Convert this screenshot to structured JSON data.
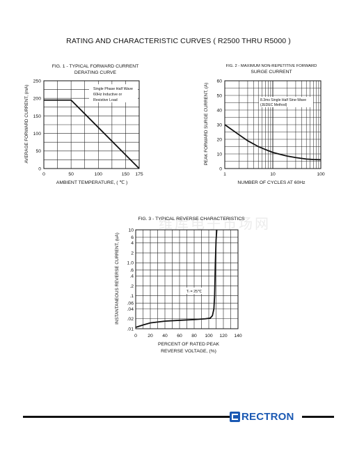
{
  "page_title": "RATING AND CHARACTERISTIC CURVES ( R2500 THRU R5000 )",
  "watermark": "维库电子市场网",
  "brand": {
    "name": "RECTRON",
    "color": "#1b59b3"
  },
  "chart_data": [
    {
      "id": "fig1",
      "type": "line",
      "title": "FIG. 1 - TYPICAL FORWARD CURRENT",
      "subtitle": "DERATING CURVE",
      "xlabel": "AMBIENT TEMPERATURE, ( ℃ )",
      "ylabel": "AVERAGE FORWARD CURRENT, (mA)",
      "xlim": [
        0,
        175
      ],
      "ylim": [
        0,
        250
      ],
      "xticks": [
        0,
        50,
        100,
        150,
        175
      ],
      "yticks": [
        0,
        50,
        100,
        150,
        200,
        250
      ],
      "grid": true,
      "annotation": [
        "Single Phase Half Wave",
        "60Hz Inductive or",
        "Resistive Load"
      ],
      "series": [
        {
          "x": [
            0,
            50,
            175
          ],
          "y": [
            195,
            195,
            0
          ]
        }
      ]
    },
    {
      "id": "fig2",
      "type": "line",
      "title": "FIG. 2 - MAXIMUM NON-REPETITIVE FORWARD",
      "subtitle": "SURGE CURRENT",
      "xlabel": "NUMBER OF CYCLES AT 60Hz",
      "ylabel": "PEAK FORWARD SURGE CURRENT, (A)",
      "x_scale": "log",
      "xlim": [
        1,
        100
      ],
      "ylim": [
        0,
        60
      ],
      "xticks": [
        1,
        10,
        100
      ],
      "yticks": [
        0,
        10,
        20,
        30,
        40,
        50,
        60
      ],
      "grid": true,
      "annotation": [
        "8.3ms Single Half Sine-Wave",
        "(JEDEC Method)"
      ],
      "series": [
        {
          "x": [
            1,
            2,
            3,
            5,
            7,
            10,
            15,
            20,
            30,
            50,
            70,
            100
          ],
          "y": [
            30,
            23,
            19,
            15,
            13,
            11,
            9.5,
            8.5,
            7.5,
            6.5,
            6.2,
            6
          ]
        }
      ]
    },
    {
      "id": "fig3",
      "type": "line",
      "title": "FIG. 3 - TYPICAL REVERSE CHARACTERISTICS",
      "xlabel": "PERCENT OF RATED PEAK",
      "xlabel2": "REVERSE VOLTAGE, (%)",
      "ylabel": "INSTANTANEOUS REVERSE CURRENT, (uA)",
      "y_scale": "log",
      "xlim": [
        0,
        140
      ],
      "ylim": [
        0.01,
        10
      ],
      "xticks": [
        0,
        20,
        40,
        60,
        80,
        100,
        120,
        140
      ],
      "ytick_values": [
        0.01,
        0.02,
        0.04,
        0.06,
        0.1,
        0.2,
        0.4,
        0.6,
        1.0,
        2,
        4,
        6,
        10
      ],
      "ytick_labels": [
        ".01",
        ".02",
        ".04",
        ".06",
        ".1",
        ".2",
        ".4",
        ".6",
        "1.0",
        "2",
        "4",
        "6",
        "10"
      ],
      "grid": true,
      "annotation": "Tₗ = 25℃",
      "series": [
        {
          "x": [
            0,
            10,
            20,
            40,
            60,
            80,
            95,
            102,
            105,
            107,
            108,
            109,
            110,
            111
          ],
          "y": [
            0.011,
            0.013,
            0.015,
            0.017,
            0.018,
            0.019,
            0.02,
            0.021,
            0.025,
            0.04,
            0.1,
            1.0,
            5.0,
            10
          ]
        }
      ]
    }
  ]
}
